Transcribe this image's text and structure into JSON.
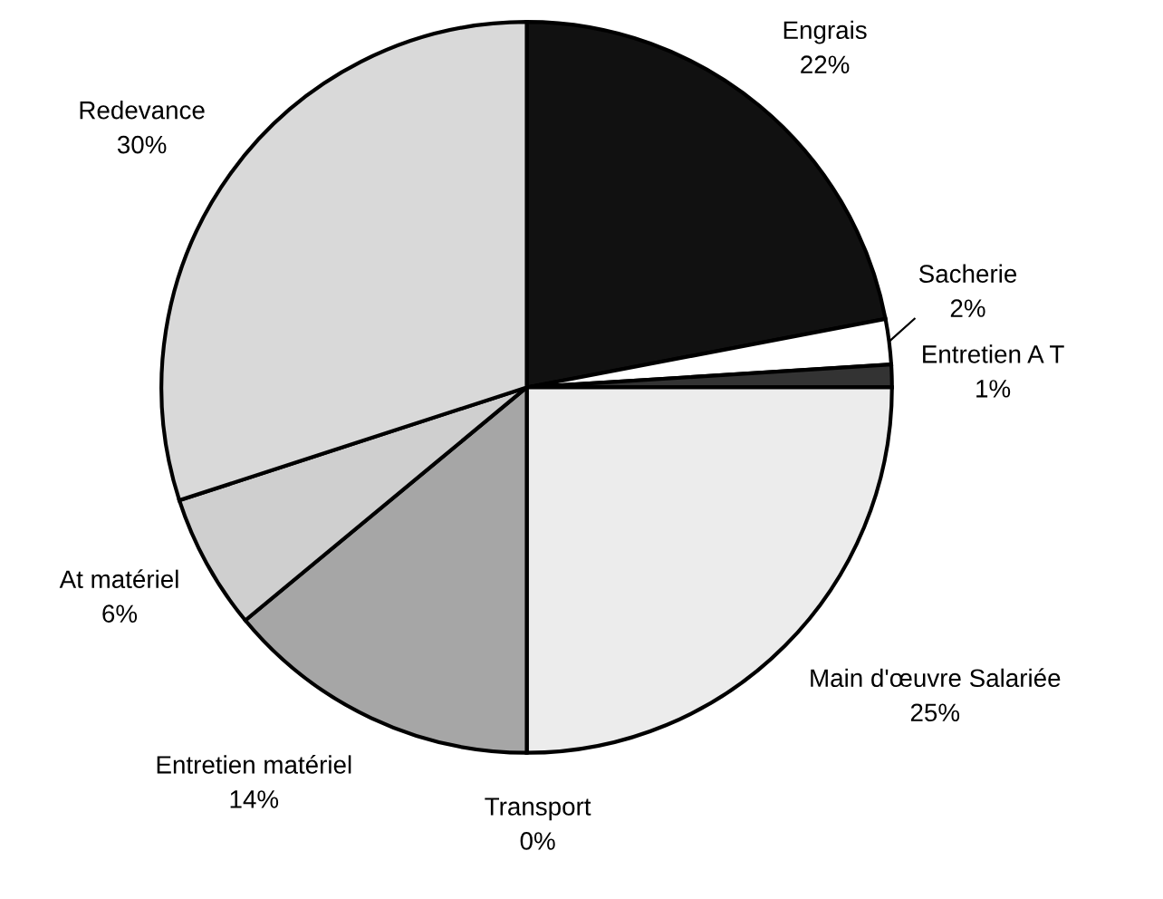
{
  "chart_data": {
    "type": "pie",
    "categories": [
      "Engrais",
      "Sacherie",
      "Entretien A T",
      "Main d'œuvre Salariée",
      "Transport",
      "Entretien matériel",
      "At matériel",
      "Redevance"
    ],
    "values": [
      22,
      2,
      1,
      25,
      0,
      14,
      6,
      30
    ],
    "value_labels": [
      "22%",
      "2%",
      "1%",
      "25%",
      "0%",
      "14%",
      "6%",
      "30%"
    ],
    "colors": [
      "#111111",
      "#ffffff",
      "#333333",
      "#ececec",
      "#cccccc",
      "#a6a6a6",
      "#cfcfcf",
      "#d9d9d9"
    ],
    "legend": false
  }
}
